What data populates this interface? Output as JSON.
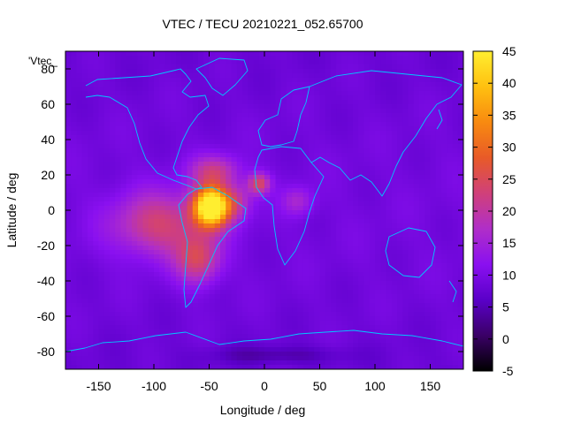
{
  "chart_data": {
    "type": "heatmap",
    "title": "VTEC / TECU 20210221_052.65700",
    "xlabel": "Longitude / deg",
    "ylabel": "Latitude / deg",
    "legend_key": "'Vtec_",
    "xlim": [
      -180,
      180
    ],
    "ylim": [
      -90,
      90
    ],
    "x_ticks": [
      -150,
      -100,
      -50,
      0,
      50,
      100,
      150
    ],
    "y_ticks": [
      -80,
      -60,
      -40,
      -20,
      0,
      20,
      40,
      60,
      80
    ],
    "colorbar": {
      "range": [
        -5,
        45
      ],
      "ticks": [
        -5,
        0,
        5,
        10,
        15,
        20,
        25,
        30,
        35,
        40,
        45
      ],
      "colors": [
        "#000000",
        "#3a0066",
        "#5a00c8",
        "#8a10f0",
        "#b02ec8",
        "#d0407a",
        "#e85a28",
        "#f88a10",
        "#ffc010",
        "#ffee30"
      ]
    },
    "background_level": 9,
    "anomalies": [
      {
        "name": "south-american-crest",
        "lon": -48,
        "lat": 2,
        "peak": 44,
        "width_lon": 16,
        "width_lat": 11
      },
      {
        "name": "equatorial-band-west",
        "lon": -95,
        "lat": -8,
        "peak": 14,
        "width_lon": 42,
        "width_lat": 18
      },
      {
        "name": "southern-extension",
        "lon": -60,
        "lat": -28,
        "peak": 14,
        "width_lon": 20,
        "width_lat": 14
      },
      {
        "name": "northern-lobe",
        "lon": -45,
        "lat": 22,
        "peak": 12,
        "width_lon": 22,
        "width_lat": 9
      },
      {
        "name": "west-africa-patch",
        "lon": -5,
        "lat": 15,
        "peak": 15,
        "width_lon": 10,
        "width_lat": 6
      },
      {
        "name": "atlantic-bridge",
        "lon": -25,
        "lat": 5,
        "peak": 9,
        "width_lon": 14,
        "width_lat": 10
      },
      {
        "name": "central-africa-tail",
        "lon": 30,
        "lat": 5,
        "peak": 7,
        "width_lon": 14,
        "width_lat": 8
      },
      {
        "name": "antarctic-low",
        "lon": 10,
        "lat": -82,
        "peak": -4,
        "width_lon": 60,
        "width_lat": 5
      }
    ]
  }
}
